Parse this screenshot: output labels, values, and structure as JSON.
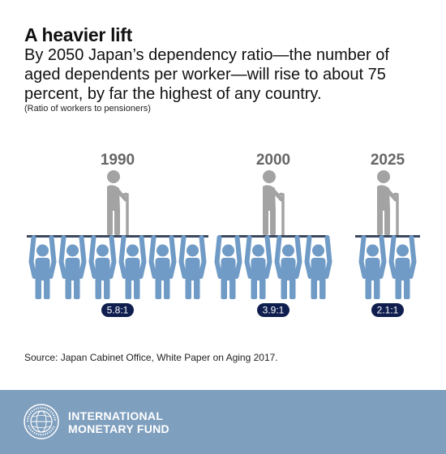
{
  "title": "A heavier lift",
  "subtitle": "By 2050 Japan’s dependency ratio—the number of aged dependents per worker—will rise to about 75 percent, by far the highest of any country.",
  "unit_note": "(Ratio of workers to pensioners)",
  "source": "Source: Japan Cabinet Office, White Paper on Aging 2017.",
  "footer": {
    "org_line1": "INTERNATIONAL",
    "org_line2": "MONETARY FUND",
    "seal_text": "INTERNATIONAL MONETARY FUND"
  },
  "colors": {
    "worker": "#6f9bc6",
    "pensioner": "#a3a3a3",
    "badge": "#0f1e4e",
    "year_text": "#666666",
    "footer_bg": "#7f9fbe"
  },
  "chart_data": {
    "type": "pictogram",
    "categories": [
      "1990",
      "2000",
      "2025"
    ],
    "values": [
      5.8,
      3.9,
      2.1
    ],
    "labels": [
      "5.8:1",
      "3.9:1",
      "2.1:1"
    ],
    "workers_shown": [
      6,
      4,
      2
    ],
    "pensioners_shown": [
      1,
      1,
      1
    ]
  }
}
